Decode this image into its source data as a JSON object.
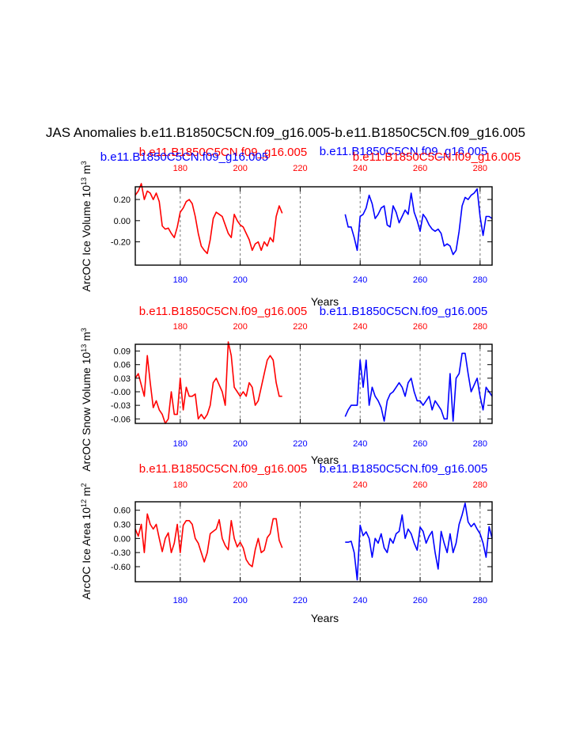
{
  "figure": {
    "title": "JAS Anomalies b.e11.B1850C5CN.f09_g16.005-b.e11.B1850C5CN.f09_g16.005",
    "colors": {
      "case1": "#ff0000",
      "case2": "#0000ff",
      "axis": "#000000",
      "grid": "#777777"
    }
  },
  "chart_data": [
    {
      "type": "line",
      "panel": "ice-volume",
      "ylabel": "ArcOC Ice Volume 10^13 m^3",
      "ylabel_main": "ArcOC Ice Volume 10",
      "ylabel_exp1": "13",
      "ylabel_unit": "m",
      "ylabel_exp2": "3",
      "xlabel": "Years",
      "xlim": [
        165,
        284
      ],
      "ylim": [
        -0.42,
        0.32
      ],
      "yticks": [
        -0.2,
        0.0,
        0.2
      ],
      "ytick_labels": [
        "-0.20",
        "0.00",
        "0.20"
      ],
      "xticks": [
        180,
        200,
        220,
        240,
        260,
        280
      ],
      "xtick_labels": [
        "180",
        "200",
        "220",
        "240",
        "260",
        "280"
      ],
      "top_labels": [
        "180",
        "200",
        "220",
        "240",
        "260",
        "280"
      ],
      "bottom_labels": [
        "180",
        "200",
        "240",
        "260",
        "280"
      ],
      "grid_x": [
        180,
        200,
        220,
        240,
        260,
        280
      ],
      "series": [
        {
          "name": "b.e11.B1850C5CN.f09_g16.005",
          "color": "#ff0000",
          "x": [
            165,
            166,
            167,
            168,
            169,
            170,
            171,
            172,
            173,
            174,
            175,
            176,
            177,
            178,
            179,
            180,
            181,
            182,
            183,
            184,
            185,
            186,
            187,
            188,
            189,
            190,
            191,
            192,
            193,
            194,
            195,
            196,
            197,
            198,
            199,
            200,
            201,
            202,
            203,
            204,
            205,
            206,
            207,
            208,
            209,
            210,
            211,
            212,
            213,
            214
          ],
          "values": [
            0.24,
            0.28,
            0.35,
            0.2,
            0.28,
            0.26,
            0.2,
            0.26,
            0.18,
            -0.05,
            -0.08,
            -0.07,
            -0.12,
            -0.16,
            -0.06,
            0.08,
            0.12,
            0.18,
            0.2,
            0.16,
            0.04,
            -0.12,
            -0.24,
            -0.28,
            -0.31,
            -0.18,
            0.02,
            0.08,
            0.06,
            0.04,
            -0.04,
            -0.12,
            -0.16,
            0.06,
            0.0,
            -0.04,
            -0.06,
            -0.12,
            -0.18,
            -0.28,
            -0.22,
            -0.2,
            -0.28,
            -0.2,
            -0.24,
            -0.16,
            -0.2,
            0.04,
            0.14,
            0.07
          ]
        },
        {
          "name": "b.e11.B1850C5CN.f09_g16.005",
          "color": "#0000ff",
          "x": [
            235,
            236,
            237,
            238,
            239,
            240,
            241,
            242,
            243,
            244,
            245,
            246,
            247,
            248,
            249,
            250,
            251,
            252,
            253,
            254,
            255,
            256,
            257,
            258,
            259,
            260,
            261,
            262,
            263,
            264,
            265,
            266,
            267,
            268,
            269,
            270,
            271,
            272,
            273,
            274,
            275,
            276,
            277,
            278,
            279,
            280,
            281,
            282,
            283,
            284
          ],
          "values": [
            0.06,
            -0.06,
            -0.06,
            -0.16,
            -0.28,
            0.04,
            0.06,
            0.12,
            0.24,
            0.16,
            0.02,
            0.06,
            0.12,
            0.14,
            -0.04,
            -0.06,
            0.14,
            0.08,
            -0.02,
            0.04,
            0.1,
            0.06,
            0.26,
            0.08,
            0.0,
            -0.1,
            0.06,
            0.02,
            -0.04,
            -0.08,
            -0.1,
            -0.08,
            -0.12,
            -0.24,
            -0.22,
            -0.24,
            -0.32,
            -0.28,
            -0.1,
            0.14,
            0.22,
            0.2,
            0.24,
            0.26,
            0.3,
            0.04,
            -0.14,
            0.04,
            0.04,
            0.02
          ]
        }
      ]
    },
    {
      "type": "line",
      "panel": "snow-volume",
      "ylabel": "ArcOC Snow Volume 10^13 m^3",
      "ylabel_main": "ArcOC Snow Volume 10",
      "ylabel_exp1": "13",
      "ylabel_unit": "m",
      "ylabel_exp2": "3",
      "xlabel": "Years",
      "xlim": [
        165,
        284
      ],
      "ylim": [
        -0.07,
        0.105
      ],
      "yticks": [
        -0.06,
        -0.03,
        0.0,
        0.03,
        0.06,
        0.09
      ],
      "ytick_labels": [
        "-0.06",
        "-0.03",
        "-0.00",
        "0.03",
        "0.06",
        "0.09"
      ],
      "xticks": [
        180,
        200,
        220,
        240,
        260,
        280
      ],
      "xtick_labels": [
        "180",
        "200",
        "220",
        "240",
        "260",
        "280"
      ],
      "top_labels": [
        "180",
        "200",
        "220",
        "240",
        "260",
        "280"
      ],
      "bottom_labels": [
        "180",
        "200",
        "220",
        "240",
        "260",
        "280"
      ],
      "grid_x": [
        180,
        200,
        220,
        240,
        260,
        280
      ],
      "series": [
        {
          "name": "b.e11.B1850C5CN.f09_g16.005",
          "color": "#ff0000",
          "x": [
            165,
            166,
            167,
            168,
            169,
            170,
            171,
            172,
            173,
            174,
            175,
            176,
            177,
            178,
            179,
            180,
            181,
            182,
            183,
            184,
            185,
            186,
            187,
            188,
            189,
            190,
            191,
            192,
            193,
            194,
            195,
            196,
            197,
            198,
            199,
            200,
            201,
            202,
            203,
            204,
            205,
            206,
            207,
            208,
            209,
            210,
            211,
            212,
            213,
            214
          ],
          "values": [
            0.03,
            0.04,
            0.015,
            -0.01,
            0.08,
            0.02,
            -0.035,
            -0.02,
            -0.04,
            -0.05,
            -0.07,
            -0.06,
            0.0,
            -0.05,
            -0.05,
            0.03,
            -0.04,
            0.01,
            -0.01,
            -0.01,
            -0.005,
            -0.06,
            -0.05,
            -0.06,
            -0.05,
            -0.03,
            0.02,
            0.03,
            0.015,
            0.0,
            -0.03,
            0.11,
            0.08,
            0.01,
            0.0,
            -0.01,
            0.0,
            -0.01,
            0.02,
            0.01,
            -0.03,
            -0.02,
            0.01,
            0.04,
            0.07,
            0.08,
            0.07,
            0.02,
            -0.01,
            -0.01
          ]
        },
        {
          "name": "b.e11.B1850C5CN.f09_g16.005",
          "color": "#0000ff",
          "x": [
            235,
            236,
            237,
            238,
            239,
            240,
            241,
            242,
            243,
            244,
            245,
            246,
            247,
            248,
            249,
            250,
            251,
            252,
            253,
            254,
            255,
            256,
            257,
            258,
            259,
            260,
            261,
            262,
            263,
            264,
            265,
            266,
            267,
            268,
            269,
            270,
            271,
            272,
            273,
            274,
            275,
            276,
            277,
            278,
            279,
            280,
            281,
            282,
            283,
            284
          ],
          "values": [
            -0.055,
            -0.04,
            -0.03,
            -0.03,
            -0.03,
            0.07,
            0.01,
            0.07,
            -0.03,
            0.01,
            -0.01,
            -0.02,
            -0.035,
            -0.065,
            -0.02,
            -0.005,
            0.0,
            0.01,
            0.02,
            0.01,
            -0.01,
            0.02,
            0.03,
            0.0,
            -0.02,
            -0.02,
            -0.03,
            -0.02,
            -0.01,
            -0.04,
            -0.02,
            -0.03,
            -0.04,
            -0.06,
            -0.06,
            0.04,
            -0.065,
            0.03,
            0.04,
            0.085,
            0.085,
            0.04,
            0.0,
            0.015,
            0.03,
            -0.01,
            -0.04,
            0.01,
            0.0,
            -0.01
          ]
        }
      ]
    },
    {
      "type": "line",
      "panel": "ice-area",
      "ylabel": "ArcOC Ice Area 10^12 m^2",
      "ylabel_main": "ArcOC Ice Area 10",
      "ylabel_exp1": "12",
      "ylabel_unit": "m",
      "ylabel_exp2": "2",
      "xlabel": "Years",
      "xlim": [
        165,
        284
      ],
      "ylim": [
        -0.92,
        0.78
      ],
      "yticks": [
        -0.6,
        -0.3,
        0.0,
        0.3,
        0.6
      ],
      "ytick_labels": [
        "-0.60",
        "-0.30",
        "0.00",
        "0.30",
        "0.60"
      ],
      "xticks": [
        180,
        200,
        220,
        240,
        260,
        280
      ],
      "xtick_labels": [
        "180",
        "200",
        "220",
        "240",
        "260",
        "280"
      ],
      "top_labels": [
        "180",
        "200",
        "240",
        "260",
        "280"
      ],
      "bottom_labels": [
        "180",
        "200",
        "220",
        "240",
        "260",
        "280"
      ],
      "grid_x": [
        180,
        200,
        220,
        240,
        260,
        280
      ],
      "series": [
        {
          "name": "b.e11.B1850C5CN.f09_g16.005",
          "color": "#ff0000",
          "x": [
            165,
            166,
            167,
            168,
            169,
            170,
            171,
            172,
            173,
            174,
            175,
            176,
            177,
            178,
            179,
            180,
            181,
            182,
            183,
            184,
            185,
            186,
            187,
            188,
            189,
            190,
            191,
            192,
            193,
            194,
            195,
            196,
            197,
            198,
            199,
            200,
            201,
            202,
            203,
            204,
            205,
            206,
            207,
            208,
            209,
            210,
            211,
            212,
            213,
            214
          ],
          "values": [
            0.2,
            0.05,
            0.3,
            -0.3,
            0.52,
            0.3,
            0.2,
            0.3,
            0.0,
            -0.28,
            0.0,
            0.12,
            -0.3,
            -0.1,
            0.3,
            -0.3,
            0.28,
            0.38,
            0.38,
            0.3,
            0.0,
            -0.1,
            -0.3,
            -0.5,
            -0.3,
            0.1,
            0.15,
            0.2,
            0.4,
            0.0,
            -0.15,
            -0.24,
            0.38,
            0.0,
            -0.18,
            -0.08,
            -0.2,
            -0.45,
            -0.55,
            -0.6,
            -0.24,
            0.0,
            -0.3,
            -0.25,
            0.02,
            0.1,
            0.42,
            0.42,
            -0.04,
            -0.2
          ]
        },
        {
          "name": "b.e11.B1850C5CN.f09_g16.005",
          "color": "#0000ff",
          "x": [
            235,
            236,
            237,
            238,
            239,
            240,
            241,
            242,
            243,
            244,
            245,
            246,
            247,
            248,
            249,
            250,
            251,
            252,
            253,
            254,
            255,
            256,
            257,
            258,
            259,
            260,
            261,
            262,
            263,
            264,
            265,
            266,
            267,
            268,
            269,
            270,
            271,
            272,
            273,
            274,
            275,
            276,
            277,
            278,
            279,
            280,
            281,
            282,
            283,
            284
          ],
          "values": [
            -0.08,
            -0.08,
            -0.06,
            -0.3,
            -0.88,
            0.28,
            0.06,
            0.14,
            0.0,
            -0.4,
            0.0,
            -0.1,
            0.1,
            -0.2,
            -0.3,
            0.0,
            -0.1,
            0.1,
            0.15,
            0.5,
            0.0,
            0.2,
            0.1,
            -0.1,
            -0.25,
            0.24,
            0.15,
            -0.1,
            0.05,
            0.15,
            -0.3,
            -0.65,
            0.15,
            -0.1,
            -0.3,
            0.1,
            -0.3,
            -0.1,
            0.3,
            0.5,
            0.75,
            0.35,
            0.25,
            0.32,
            0.2,
            0.1,
            -0.1,
            -0.4,
            0.25,
            0.0
          ]
        }
      ]
    }
  ]
}
